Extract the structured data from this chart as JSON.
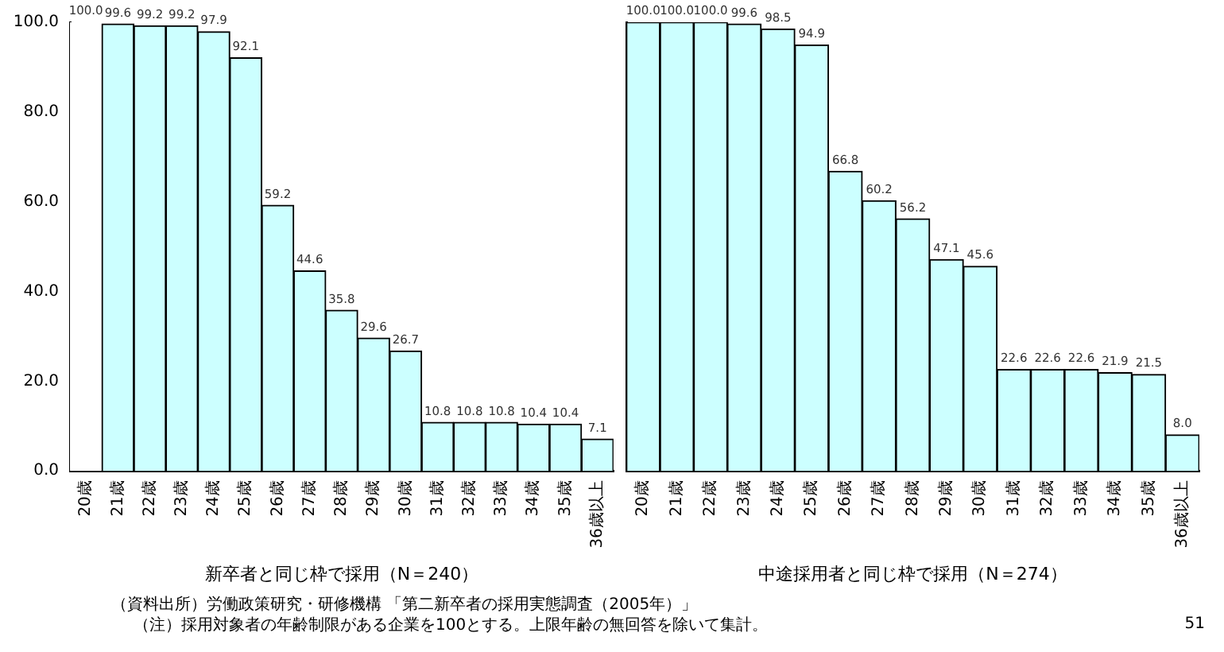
{
  "chart_data": [
    {
      "type": "bar",
      "categories": [
        "20歳",
        "21歳",
        "22歳",
        "23歳",
        "24歳",
        "25歳",
        "26歳",
        "27歳",
        "28歳",
        "29歳",
        "30歳",
        "31歳",
        "32歳",
        "33歳",
        "34歳",
        "35歳",
        "36歳以上"
      ],
      "values": [
        100.0,
        99.6,
        99.2,
        99.2,
        97.9,
        92.1,
        59.2,
        44.6,
        35.8,
        29.6,
        26.7,
        10.8,
        10.8,
        10.8,
        10.4,
        10.4,
        7.1
      ],
      "colors": [
        "#ffffff",
        "#ccffff",
        "#ccffff",
        "#ccffff",
        "#ccffff",
        "#ccffff",
        "#ccffff",
        "#ccffff",
        "#ccffff",
        "#ccffff",
        "#ccffff",
        "#ccffff",
        "#ccffff",
        "#ccffff",
        "#ccffff",
        "#ccffff",
        "#ccffff"
      ],
      "value_labels": [
        "100.0",
        "99.6",
        "99.2",
        "99.2",
        "97.9",
        "92.1",
        "59.2",
        "44.6",
        "35.8",
        "29.6",
        "26.7",
        "10.8",
        "10.8",
        "10.8",
        "10.4",
        "10.4",
        "7.1"
      ],
      "xlabel": "新卒者と同じ枠で採用（N＝240）",
      "ylim": [
        0,
        100
      ],
      "yticks": [
        {
          "value": 0,
          "label": "0.0"
        },
        {
          "value": 20,
          "label": "20.0"
        },
        {
          "value": 40,
          "label": "40.0"
        },
        {
          "value": 60,
          "label": "60.0"
        },
        {
          "value": 80,
          "label": "80.0"
        },
        {
          "value": 100,
          "label": "100.0"
        }
      ],
      "grid": false,
      "legend": false,
      "annotations": [
        "（資料出所）労働政策研究・研修機構 「第二新卒者の採用実態調査（2005年）」",
        "（注）採用対象者の年齢制限がある企業を100とする。上限年齢の無回答を除いて集計。"
      ]
    },
    {
      "type": "bar",
      "categories": [
        "20歳",
        "21歳",
        "22歳",
        "23歳",
        "24歳",
        "25歳",
        "26歳",
        "27歳",
        "28歳",
        "29歳",
        "30歳",
        "31歳",
        "32歳",
        "33歳",
        "34歳",
        "35歳",
        "36歳以上"
      ],
      "values": [
        100.0,
        100.0,
        100.0,
        99.6,
        98.5,
        94.9,
        66.8,
        60.2,
        56.2,
        47.1,
        45.6,
        22.6,
        22.6,
        22.6,
        21.9,
        21.5,
        8.0
      ],
      "color": "#ccffff",
      "value_labels": [
        "100.0",
        "100.0",
        "100.0",
        "99.6",
        "98.5",
        "94.9",
        "66.8",
        "60.2",
        "56.2",
        "47.1",
        "45.6",
        "22.6",
        "22.6",
        "22.6",
        "21.9",
        "21.5",
        "8.0"
      ],
      "xlabel": "中途採用者と同じ枠で採用（N＝274）",
      "ylim": [
        0,
        100
      ],
      "tick_labels": "x",
      "grid": false,
      "legend": false,
      "annotations": [
        "51"
      ]
    }
  ]
}
